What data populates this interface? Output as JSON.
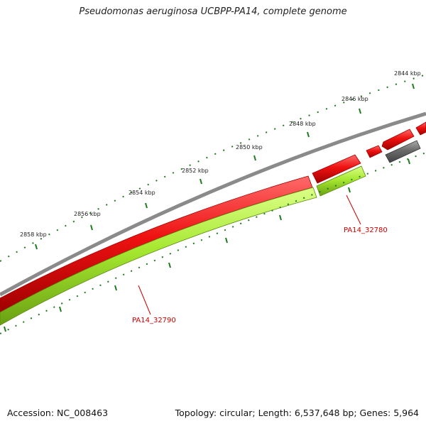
{
  "title": "Pseudomonas aeruginosa UCBPP-PA14, complete genome",
  "footer": {
    "accession": "Accession: NC_008463",
    "summary": "Topology: circular; Length: 6,537,648 bp; Genes: 5,964"
  },
  "ruler_labels": [
    "2844 kbp",
    "2846 kbp",
    "2848 kbp",
    "2850 kbp",
    "2852 kbp",
    "2854 kbp",
    "2856 kbp",
    "2858 kbp"
  ],
  "gene_labels": [
    "PA14_32780",
    "PA14_32790"
  ],
  "colors": {
    "backbone": "#8a8a8a",
    "gene_red": "#ee1111",
    "gene_green": "#a6e830",
    "gene_grey": "#6a6a6a",
    "tick": "#1f7a1f",
    "gene_label": "#cc0000"
  }
}
